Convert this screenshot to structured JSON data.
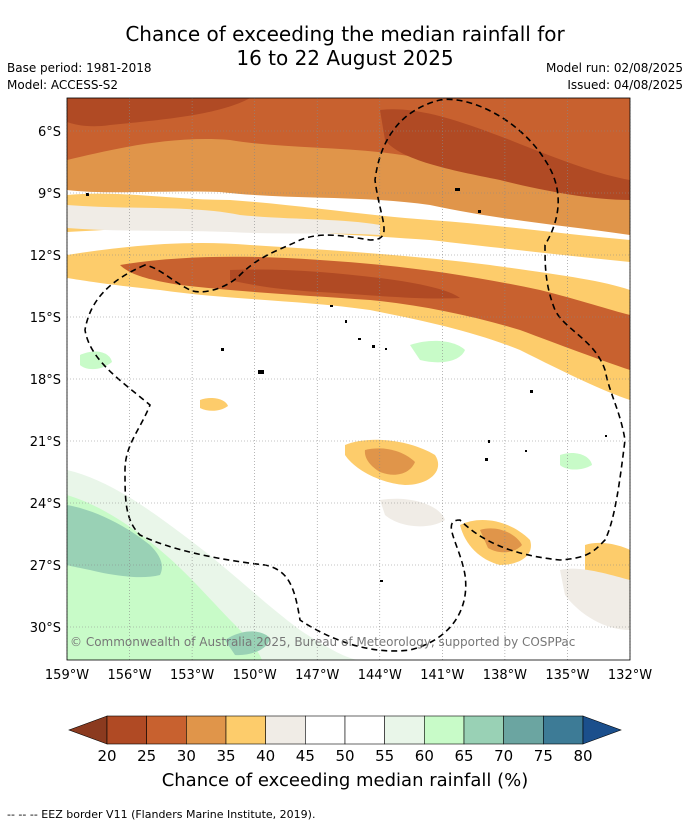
{
  "title_line1": "Chance of exceeding the median rainfall for",
  "title_line2": "16 to 22 August 2025",
  "base_period": "Base period: 1981-2018",
  "model": "Model: ACCESS-S2",
  "model_run": "Model run: 02/08/2025",
  "issued": "Issued: 04/08/2025",
  "copyright": "© Commonwealth of Australia 2025, Bureau of Meteorology, supported by COSPPac",
  "map": {
    "lon_range": [
      -159,
      -132
    ],
    "lat_range": [
      -32,
      -4
    ],
    "lon_ticks": [
      "159°W",
      "156°W",
      "153°W",
      "150°W",
      "147°W",
      "144°W",
      "141°W",
      "138°W",
      "135°W",
      "132°W"
    ],
    "lat_ticks": [
      "6°S",
      "9°S",
      "12°S",
      "15°S",
      "18°S",
      "21°S",
      "24°S",
      "27°S",
      "30°S"
    ]
  },
  "legend": {
    "title": "Chance of exceeding median rainfall (%)",
    "tick_labels": [
      "20",
      "25",
      "30",
      "35",
      "40",
      "45",
      "50",
      "55",
      "60",
      "65",
      "70",
      "75",
      "80"
    ],
    "colors": [
      "#8b3a1f",
      "#b04a24",
      "#c8612f",
      "#e0954a",
      "#fdcc6b",
      "#f0ece6",
      "#ffffff",
      "#ffffff",
      "#e9f6e9",
      "#c8fbc8",
      "#99d1b5",
      "#6ba5a1",
      "#3d7b96",
      "#1b4f8c"
    ]
  },
  "footer": "-- -- -- EEZ border V11 (Flanders Marine Institute, 2019)."
}
